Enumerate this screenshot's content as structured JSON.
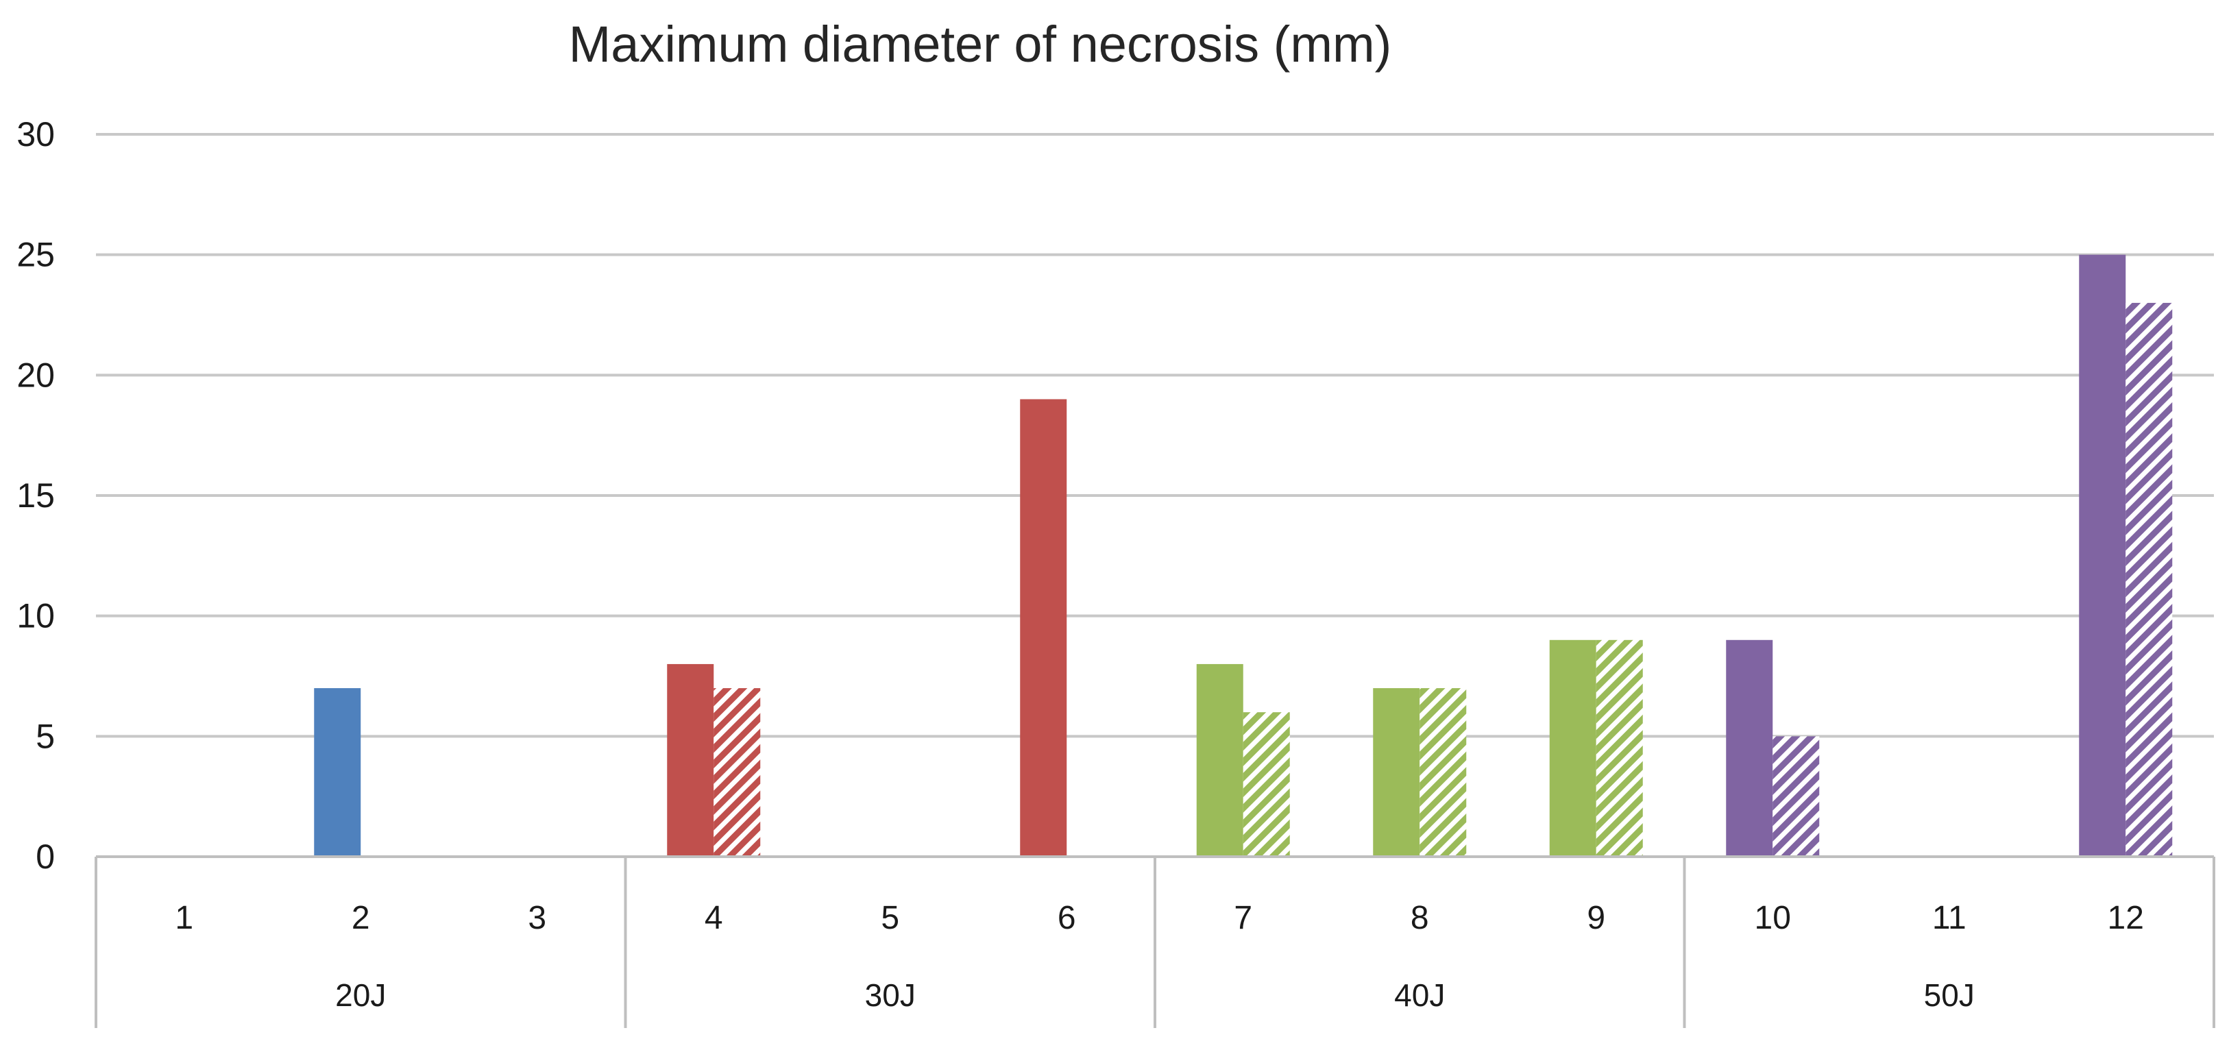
{
  "chart_data": {
    "type": "bar",
    "title": "Maximum diameter of necrosis (mm)",
    "xlabel": "",
    "ylabel": "",
    "ylim": [
      0,
      30
    ],
    "yticks": [
      0,
      5,
      10,
      15,
      20,
      25,
      30
    ],
    "grid": true,
    "legend": "none",
    "categories": [
      "1",
      "2",
      "3",
      "4",
      "5",
      "6",
      "7",
      "8",
      "9",
      "10",
      "11",
      "12"
    ],
    "groups": [
      {
        "label": "20J",
        "categories": [
          "1",
          "2",
          "3"
        ],
        "color": "#4F81BD"
      },
      {
        "label": "30J",
        "categories": [
          "4",
          "5",
          "6"
        ],
        "color": "#C0504D"
      },
      {
        "label": "40J",
        "categories": [
          "7",
          "8",
          "9"
        ],
        "color": "#9BBB59"
      },
      {
        "label": "50J",
        "categories": [
          "10",
          "11",
          "12"
        ],
        "color": "#8064A2"
      }
    ],
    "series": [
      {
        "style": "solid",
        "values": [
          0,
          7,
          0,
          8,
          0,
          19,
          8,
          7,
          9,
          9,
          0,
          25
        ]
      },
      {
        "style": "hatched",
        "values": [
          0,
          0,
          0,
          7,
          0,
          0,
          6,
          7,
          9,
          5,
          0,
          23
        ]
      }
    ]
  }
}
